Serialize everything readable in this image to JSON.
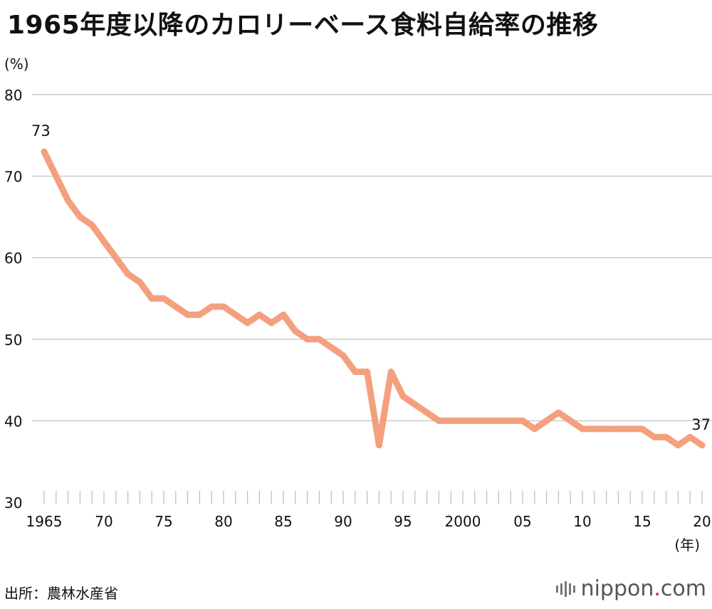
{
  "title": "1965年度以降のカロリーベース食料自給率の推移",
  "unit_label": "(%)",
  "x_unit_label": "(年)",
  "source": "出所：農林水産省",
  "logo": {
    "main": "nippon",
    "dot": ".",
    "suffix": "com"
  },
  "colors": {
    "line": "#f4a07e",
    "grid": "#cccccc",
    "tick": "#bbbbbb"
  },
  "chart_data": {
    "type": "line",
    "title": "1965年度以降のカロリーベース食料自給率の推移",
    "xlabel": "(年)",
    "ylabel": "(%)",
    "ylim": [
      30,
      80
    ],
    "yticks": [
      30,
      40,
      50,
      60,
      70,
      80
    ],
    "xlim": [
      1965,
      2020
    ],
    "xticks": [
      {
        "value": 1965,
        "label": "1965"
      },
      {
        "value": 1970,
        "label": "70"
      },
      {
        "value": 1975,
        "label": "75"
      },
      {
        "value": 1980,
        "label": "80"
      },
      {
        "value": 1985,
        "label": "85"
      },
      {
        "value": 1990,
        "label": "90"
      },
      {
        "value": 1995,
        "label": "95"
      },
      {
        "value": 2000,
        "label": "2000"
      },
      {
        "value": 2005,
        "label": "05"
      },
      {
        "value": 2010,
        "label": "10"
      },
      {
        "value": 2015,
        "label": "15"
      },
      {
        "value": 2020,
        "label": "20"
      }
    ],
    "grid": true,
    "x": [
      1965,
      1966,
      1967,
      1968,
      1969,
      1970,
      1971,
      1972,
      1973,
      1974,
      1975,
      1976,
      1977,
      1978,
      1979,
      1980,
      1981,
      1982,
      1983,
      1984,
      1985,
      1986,
      1987,
      1988,
      1989,
      1990,
      1991,
      1992,
      1993,
      1994,
      1995,
      1996,
      1997,
      1998,
      1999,
      2000,
      2001,
      2002,
      2003,
      2004,
      2005,
      2006,
      2007,
      2008,
      2009,
      2010,
      2011,
      2012,
      2013,
      2014,
      2015,
      2016,
      2017,
      2018,
      2019,
      2020
    ],
    "values": [
      73,
      70,
      67,
      65,
      64,
      62,
      60,
      58,
      57,
      55,
      55,
      54,
      53,
      53,
      54,
      54,
      53,
      52,
      53,
      52,
      53,
      51,
      50,
      50,
      49,
      48,
      46,
      46,
      37,
      46,
      43,
      42,
      41,
      40,
      40,
      40,
      40,
      40,
      40,
      40,
      40,
      39,
      40,
      41,
      40,
      39,
      39,
      39,
      39,
      39,
      39,
      38,
      38,
      37,
      38,
      37
    ],
    "annotations": [
      {
        "x": 1965,
        "y": 73,
        "text": "73"
      },
      {
        "x": 2020,
        "y": 37,
        "text": "37"
      }
    ]
  }
}
